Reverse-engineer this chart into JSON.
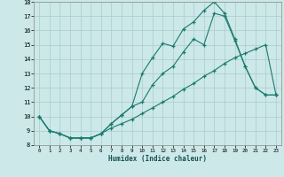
{
  "xlabel": "Humidex (Indice chaleur)",
  "background_color": "#cce8e8",
  "grid_color": "#aacccc",
  "line_color": "#1a7a6e",
  "xlim_min": -0.5,
  "xlim_max": 23.5,
  "ylim_min": 8,
  "ylim_max": 18,
  "yticks": [
    8,
    9,
    10,
    11,
    12,
    13,
    14,
    15,
    16,
    17,
    18
  ],
  "xticks": [
    0,
    1,
    2,
    3,
    4,
    5,
    6,
    7,
    8,
    9,
    10,
    11,
    12,
    13,
    14,
    15,
    16,
    17,
    18,
    19,
    20,
    21,
    22,
    23
  ],
  "line1_x": [
    0,
    1,
    2,
    3,
    4,
    5,
    6,
    7,
    8,
    9,
    10,
    11,
    12,
    13,
    14,
    15,
    16,
    17,
    18,
    19,
    20,
    21,
    22,
    23
  ],
  "line1_y": [
    10,
    9,
    8.8,
    8.5,
    8.5,
    8.5,
    8.8,
    9.5,
    10.1,
    10.7,
    13.0,
    14.1,
    15.1,
    14.9,
    16.1,
    16.6,
    17.4,
    18.0,
    17.2,
    15.4,
    13.5,
    12.0,
    11.5,
    11.5
  ],
  "line2_x": [
    0,
    1,
    2,
    3,
    4,
    5,
    6,
    7,
    8,
    9,
    10,
    11,
    12,
    13,
    14,
    15,
    16,
    17,
    18,
    19,
    20,
    21,
    22,
    23
  ],
  "line2_y": [
    10,
    9,
    8.8,
    8.5,
    8.5,
    8.5,
    8.8,
    9.5,
    10.1,
    10.7,
    11.0,
    12.2,
    13.0,
    13.5,
    14.5,
    15.4,
    15.0,
    17.2,
    17.0,
    15.3,
    13.5,
    12.0,
    11.5,
    11.5
  ],
  "line3_x": [
    0,
    1,
    2,
    3,
    4,
    5,
    6,
    7,
    8,
    9,
    10,
    11,
    12,
    13,
    14,
    15,
    16,
    17,
    18,
    19,
    20,
    21,
    22,
    23
  ],
  "line3_y": [
    10,
    9,
    8.8,
    8.5,
    8.5,
    8.5,
    8.8,
    9.2,
    9.5,
    9.8,
    10.2,
    10.6,
    11.0,
    11.4,
    11.9,
    12.3,
    12.8,
    13.2,
    13.7,
    14.1,
    14.4,
    14.7,
    15.0,
    11.5
  ]
}
